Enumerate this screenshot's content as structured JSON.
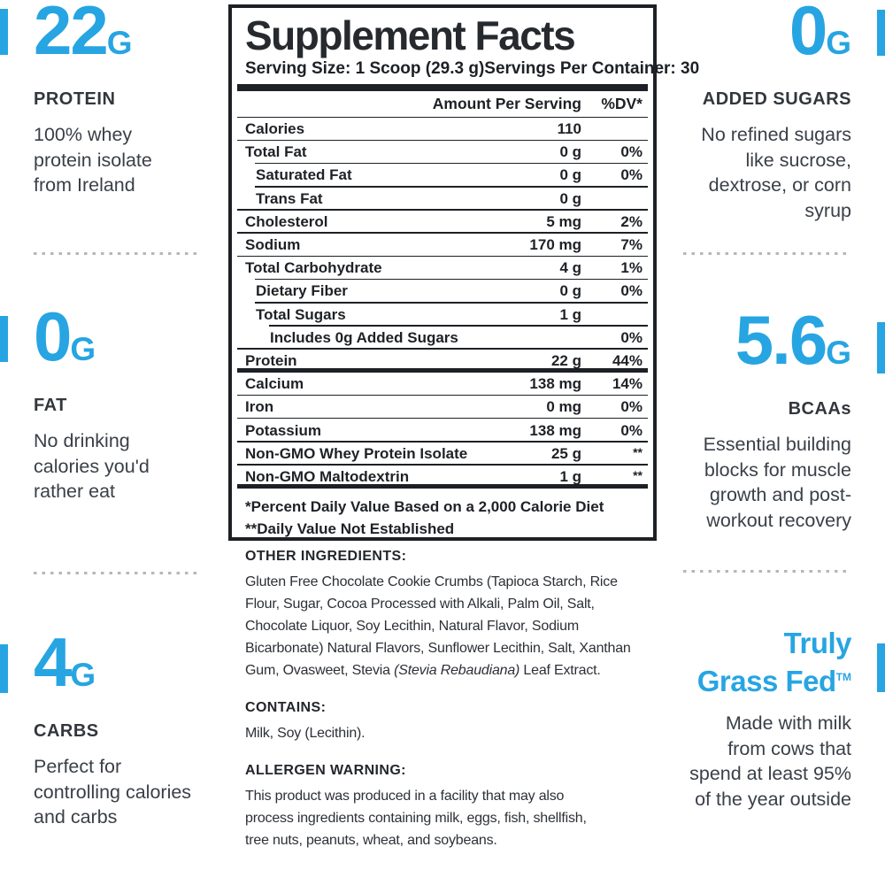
{
  "colors": {
    "accent": "#27a5e2",
    "ink": "#1d2025",
    "heading": "#32373d",
    "body": "#3a4048",
    "dots": "#b4b7bb"
  },
  "left_column": {
    "stats": [
      {
        "value": "22",
        "unit": "G",
        "label": "PROTEIN",
        "description": "100% whey\nprotein isolate\nfrom Ireland"
      },
      {
        "value": "0",
        "unit": "G",
        "label": "FAT",
        "description": "No drinking\ncalories you'd\nrather eat"
      },
      {
        "value": "4",
        "unit": "G",
        "label": "CARBS",
        "description": "Perfect for\ncontrolling calories\nand carbs"
      }
    ]
  },
  "right_column": {
    "stats": [
      {
        "value": "0",
        "unit": "G",
        "label": "ADDED SUGARS",
        "description": "No refined sugars\nlike sucrose,\ndextrose, or corn\nsyrup"
      },
      {
        "value": "5.6",
        "unit": "G",
        "label": "BCAAs",
        "description": "Essential building\nblocks for muscle\ngrowth and post-\nworkout recovery"
      },
      {
        "line1": "Truly",
        "line2": "Grass Fed",
        "trademark": "TM",
        "description": "Made with milk\nfrom cows that\nspend at least 95%\nof the year outside"
      }
    ]
  },
  "panel": {
    "title": "Supplement Facts",
    "serving_size": "Serving Size: 1 Scoop (29.3 g)",
    "servings_per_container": "Servings Per Container: 30",
    "amount_header": "Amount Per Serving",
    "dv_header": "%DV*",
    "rows": [
      {
        "label": "Calories",
        "amount": "110",
        "dv": "",
        "indent": 0,
        "rule": "thin"
      },
      {
        "label": "Total Fat",
        "amount": "0 g",
        "dv": "0%",
        "indent": 0,
        "rule": "thin-indent"
      },
      {
        "label": "Saturated Fat",
        "amount": "0 g",
        "dv": "0%",
        "indent": 1,
        "rule": "thin-indent"
      },
      {
        "label": "Trans Fat",
        "amount": "0 g",
        "dv": "",
        "indent": 1,
        "rule": "thin"
      },
      {
        "label": "Cholesterol",
        "amount": "5 mg",
        "dv": "2%",
        "indent": 0,
        "rule": "thin"
      },
      {
        "label": "Sodium",
        "amount": "170 mg",
        "dv": "7%",
        "indent": 0,
        "rule": "thin"
      },
      {
        "label": "Total Carbohydrate",
        "amount": "4 g",
        "dv": "1%",
        "indent": 0,
        "rule": "thin-indent"
      },
      {
        "label": "Dietary Fiber",
        "amount": "0 g",
        "dv": "0%",
        "indent": 1,
        "rule": "thin-indent"
      },
      {
        "label": "Total Sugars",
        "amount": "1 g",
        "dv": "",
        "indent": 1,
        "rule": "thin-indent2"
      },
      {
        "label": "Includes 0g Added Sugars",
        "amount": "",
        "dv": "0%",
        "indent": 2,
        "rule": "thin"
      },
      {
        "label": "Protein",
        "amount": "22 g",
        "dv": "44%",
        "indent": 0,
        "rule": "thick"
      },
      {
        "label": "Calcium",
        "amount": "138 mg",
        "dv": "14%",
        "indent": 0,
        "rule": "thin"
      },
      {
        "label": "Iron",
        "amount": "0 mg",
        "dv": "0%",
        "indent": 0,
        "rule": "thin"
      },
      {
        "label": "Potassium",
        "amount": "138 mg",
        "dv": "0%",
        "indent": 0,
        "rule": "thin"
      },
      {
        "label": "Non-GMO Whey Protein Isolate",
        "amount": "25 g",
        "dv": "**",
        "indent": 0,
        "rule": "thin"
      },
      {
        "label": "Non-GMO Maltodextrin",
        "amount": "1 g",
        "dv": "**",
        "indent": 0,
        "rule": "thick"
      }
    ],
    "footnote1": "*Percent Daily Value Based on a 2,000 Calorie Diet",
    "footnote2": "**Daily Value Not Established"
  },
  "sections": {
    "other_ingredients": {
      "heading": "OTHER INGREDIENTS:",
      "text": "Gluten Free Chocolate Cookie Crumbs (Tapioca Starch, Rice\nFlour, Sugar, Cocoa Processed with Alkali, Palm Oil, Salt,\nChocolate Liquor, Soy Lecithin, Natural Flavor, Sodium\nBicarbonate) Natural Flavors, Sunflower Lecithin, Salt, Xanthan\nGum, Ovasweet, Stevia ",
      "italic": "(Stevia Rebaudiana)",
      "text_after": " Leaf Extract."
    },
    "contains": {
      "heading": "CONTAINS:",
      "text": "Milk, Soy (Lecithin)."
    },
    "allergen": {
      "heading": "ALLERGEN WARNING:",
      "text": "This product was produced in a facility that may also\nprocess ingredients containing milk, eggs, fish, shellfish,\ntree nuts, peanuts, wheat, and soybeans."
    }
  }
}
